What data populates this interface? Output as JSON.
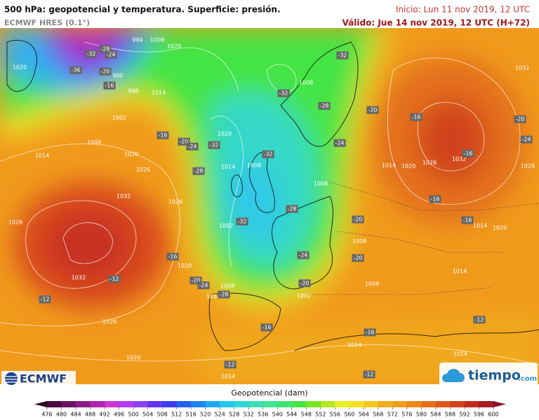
{
  "header": {
    "title": "500 hPa: geopotencial y temperatura. Superficie: presión.",
    "model": "ECMWF HRES (0.1°)",
    "init": "Inicio: Lun 11 nov 2019, 12 UTC",
    "valid": "Válido: Jue 14 nov 2019, 12 UTC (H+72)"
  },
  "map": {
    "pressure_labels": [
      "984",
      "1008",
      "1020",
      "1020",
      "990",
      "996",
      "1014",
      "1002",
      "1008",
      "1014",
      "1020",
      "1026",
      "1032",
      "1026",
      "1026",
      "1020",
      "1014",
      "1008",
      "1002",
      "1008",
      "1008",
      "1014",
      "1020",
      "1026",
      "1032",
      "1026",
      "1032",
      "1020",
      "1032",
      "1008",
      "1014",
      "1002",
      "1008",
      "1008",
      "1014",
      "1020",
      "1014",
      "1026",
      "1020",
      "1014",
      "1014",
      "1014"
    ],
    "temperature_labels": [
      "-32",
      "-28",
      "-36",
      "-24",
      "-20",
      "-16",
      "-32",
      "-32",
      "-28",
      "-20",
      "-24",
      "-16",
      "-20",
      "-24",
      "-32",
      "-32",
      "-28",
      "-28",
      "-32",
      "-20",
      "-24",
      "-20",
      "-16",
      "-20",
      "-24",
      "-28",
      "-20",
      "-16",
      "-20",
      "-24",
      "-16",
      "-16",
      "-16",
      "-12",
      "-12",
      "-16",
      "-16",
      "-12",
      "-12",
      "-12"
    ]
  },
  "legend": {
    "title": "Geopotencial (dam)",
    "ticks": [
      476,
      480,
      484,
      488,
      492,
      496,
      500,
      504,
      508,
      512,
      516,
      520,
      524,
      528,
      532,
      536,
      540,
      544,
      548,
      552,
      556,
      560,
      564,
      568,
      572,
      576,
      580,
      584,
      588,
      592,
      596,
      600
    ],
    "colors": [
      "#2a0626",
      "#4a0c40",
      "#6c1464",
      "#8c1c88",
      "#b024b0",
      "#cc34d4",
      "#b43cf0",
      "#8c40f0",
      "#6434f0",
      "#3c3cf0",
      "#2460f0",
      "#1c84f0",
      "#1ca8f0",
      "#20c8ec",
      "#30d8d8",
      "#3ce0b8",
      "#40e494",
      "#40e470",
      "#44e444",
      "#78e424",
      "#b4e820",
      "#e8f020",
      "#f4e020",
      "#f4c81c",
      "#f0b01c",
      "#f09c1c",
      "#ec881c",
      "#e4701c",
      "#dc5a1c",
      "#d0421c",
      "#c02c20",
      "#a81c24",
      "#8c1030"
    ]
  },
  "logos": {
    "ecmwf": "ECMWF",
    "tiempo": "tiempo",
    "tiempo_domain": ".com"
  }
}
